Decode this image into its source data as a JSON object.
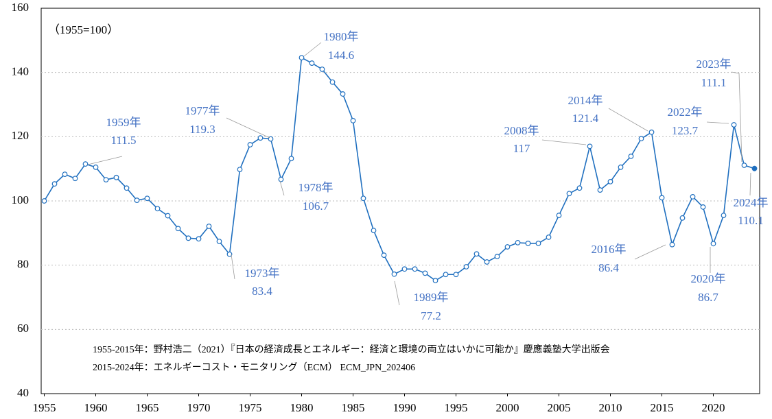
{
  "chart_data": {
    "type": "line",
    "subtitle": "（1955=100）",
    "notes": [
      "1955-2015年：野村浩二（2021）『日本の経済成長とエネルギー：経済と環境の両立はいかに可能か』慶應義塾大学出版会",
      "2015-2024年：エネルギーコスト・モニタリング（ECM） ECM_JPN_202406"
    ],
    "x": [
      1955,
      1956,
      1957,
      1958,
      1959,
      1960,
      1961,
      1962,
      1963,
      1964,
      1965,
      1966,
      1967,
      1968,
      1969,
      1970,
      1971,
      1972,
      1973,
      1974,
      1975,
      1976,
      1977,
      1978,
      1979,
      1980,
      1981,
      1982,
      1983,
      1984,
      1985,
      1986,
      1987,
      1988,
      1989,
      1990,
      1991,
      1992,
      1993,
      1994,
      1995,
      1996,
      1997,
      1998,
      1999,
      2000,
      2001,
      2002,
      2003,
      2004,
      2005,
      2006,
      2007,
      2008,
      2009,
      2010,
      2011,
      2012,
      2013,
      2014,
      2015,
      2016,
      2017,
      2018,
      2019,
      2020,
      2021,
      2022,
      2023,
      2024
    ],
    "series": [
      {
        "color": "#1f6fbf",
        "values": [
          100,
          105.3,
          108.3,
          107,
          111.5,
          110.5,
          106.6,
          107.3,
          104,
          100.2,
          100.8,
          97.6,
          95.4,
          91.4,
          88.4,
          88.2,
          92.1,
          87.4,
          83.4,
          109.8,
          117.5,
          119.6,
          119.3,
          106.7,
          113.2,
          144.6,
          142.9,
          141,
          137,
          133.3,
          125,
          100.8,
          90.8,
          83.1,
          77.2,
          78.8,
          78.8,
          77.5,
          75.2,
          77.1,
          77.1,
          79.5,
          83.5,
          81,
          82.7,
          85.7,
          87,
          86.8,
          86.8,
          88.7,
          95.5,
          102.3,
          104,
          117.0,
          103.4,
          106,
          110.5,
          113.9,
          119.4,
          121.4,
          101,
          86.4,
          94.7,
          101.3,
          98.1,
          86.7,
          95.5,
          123.7,
          111.1,
          110.1
        ]
      }
    ],
    "annotations": [
      {
        "text": "1959年",
        "x": 1959
      },
      {
        "text": "1973年",
        "x": 1973
      },
      {
        "text": "1977年",
        "x": 1977
      },
      {
        "text": "1978年",
        "x": 1978
      },
      {
        "text": "1980年",
        "x": 1980
      },
      {
        "text": "1989年",
        "x": 1989
      },
      {
        "text": "2008年",
        "x": 2008
      },
      {
        "text": "2014年",
        "x": 2014
      },
      {
        "text": "2016年",
        "x": 2016
      },
      {
        "text": "2020年",
        "x": 2020
      },
      {
        "text": "2022年",
        "x": 2022
      },
      {
        "text": "2023年",
        "x": 2023
      },
      {
        "text": "2024年",
        "x": 2024
      }
    ],
    "annotation_color": "#4472c4",
    "xlim": [
      1954.7,
      2024.5
    ],
    "xticks": [
      1955,
      1960,
      1965,
      1970,
      1975,
      1980,
      1985,
      1990,
      1995,
      2000,
      2005,
      2010,
      2015,
      2020
    ],
    "ylim": [
      40,
      160
    ],
    "yticks": [
      40,
      60,
      80,
      100,
      120,
      140,
      160
    ],
    "grid": true
  }
}
